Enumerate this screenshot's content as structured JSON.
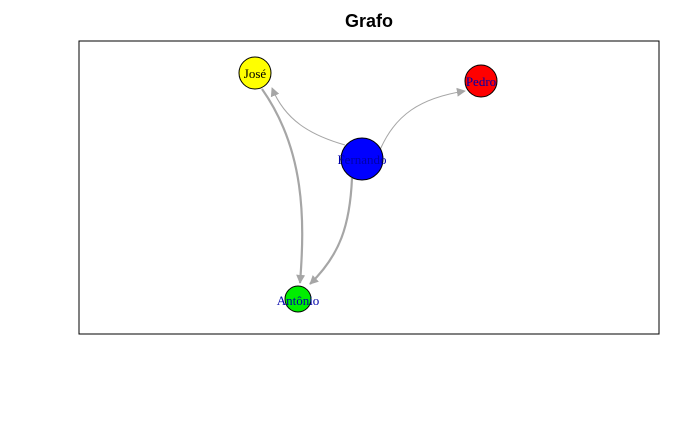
{
  "title": "Grafo",
  "nodes": [
    {
      "id": "jose",
      "label": "José",
      "color": "#ffff00",
      "label_color": "#000000"
    },
    {
      "id": "pedro",
      "label": "Pedro",
      "color": "#ff0000",
      "label_color": "#0000aa"
    },
    {
      "id": "fernando",
      "label": "Fernando",
      "color": "#0000ff",
      "label_color": "#0000aa"
    },
    {
      "id": "antonio",
      "label": "Antônio",
      "color": "#00ee00",
      "label_color": "#0000aa"
    }
  ],
  "edges": [
    {
      "from": "fernando",
      "to": "jose"
    },
    {
      "from": "fernando",
      "to": "pedro"
    },
    {
      "from": "fernando",
      "to": "antonio"
    },
    {
      "from": "jose",
      "to": "antonio"
    }
  ],
  "colors": {
    "edge": "#a6a6a6",
    "frame": "#000000"
  }
}
